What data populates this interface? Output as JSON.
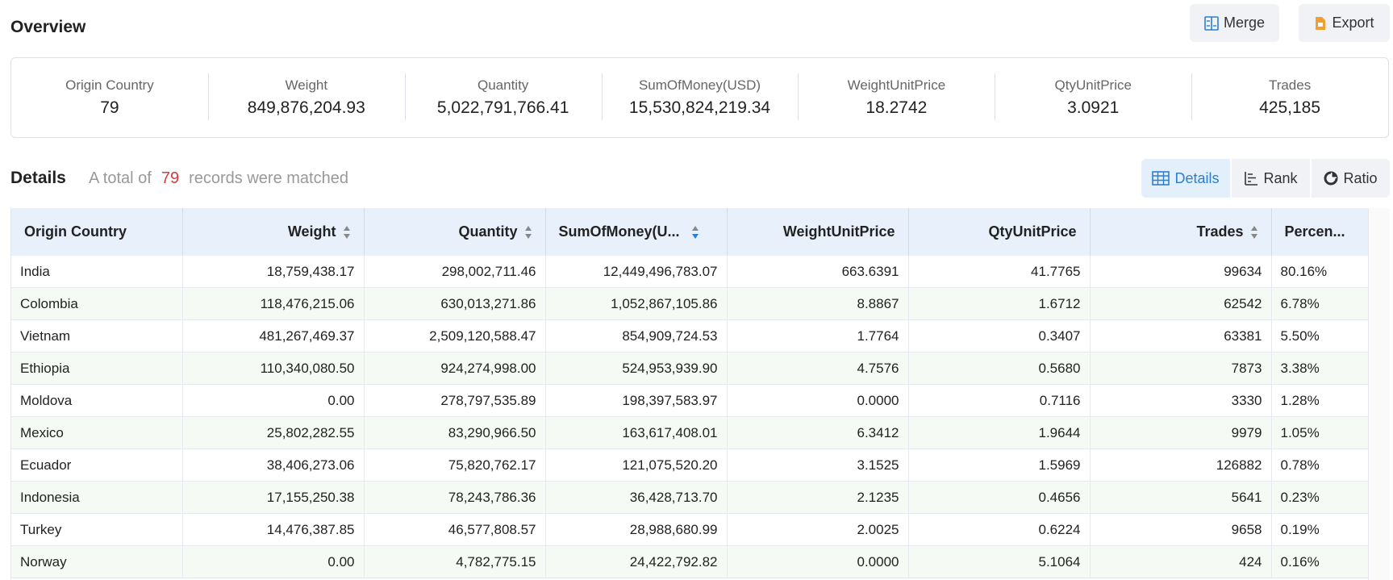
{
  "overview": {
    "title": "Overview",
    "merge_label": "Merge",
    "export_label": "Export"
  },
  "stats": [
    {
      "label": "Origin Country",
      "value": "79"
    },
    {
      "label": "Weight",
      "value": "849,876,204.93"
    },
    {
      "label": "Quantity",
      "value": "5,022,791,766.41"
    },
    {
      "label": "SumOfMoney(USD)",
      "value": "15,530,824,219.34"
    },
    {
      "label": "WeightUnitPrice",
      "value": "18.2742"
    },
    {
      "label": "QtyUnitPrice",
      "value": "3.0921"
    },
    {
      "label": "Trades",
      "value": "425,185"
    }
  ],
  "details": {
    "title": "Details",
    "summary_prefix": "A total of",
    "summary_count": "79",
    "summary_suffix": "records were matched",
    "tabs": [
      {
        "label": "Details",
        "icon": "table-icon",
        "active": true
      },
      {
        "label": "Rank",
        "icon": "rank-icon",
        "active": false
      },
      {
        "label": "Ratio",
        "icon": "pie-chart-icon",
        "active": false
      }
    ]
  },
  "table": {
    "columns": [
      {
        "label": "Origin Country",
        "sortable": false
      },
      {
        "label": "Weight",
        "sortable": true
      },
      {
        "label": "Quantity",
        "sortable": true
      },
      {
        "label": "SumOfMoney(U...",
        "sortable": true,
        "sorted": "desc"
      },
      {
        "label": "WeightUnitPrice",
        "sortable": false
      },
      {
        "label": "QtyUnitPrice",
        "sortable": false
      },
      {
        "label": "Trades",
        "sortable": true
      },
      {
        "label": "Percen...",
        "sortable": false
      }
    ],
    "rows": [
      [
        "India",
        "18,759,438.17",
        "298,002,711.46",
        "12,449,496,783.07",
        "663.6391",
        "41.7765",
        "99634",
        "80.16%"
      ],
      [
        "Colombia",
        "118,476,215.06",
        "630,013,271.86",
        "1,052,867,105.86",
        "8.8867",
        "1.6712",
        "62542",
        "6.78%"
      ],
      [
        "Vietnam",
        "481,267,469.37",
        "2,509,120,588.47",
        "854,909,724.53",
        "1.7764",
        "0.3407",
        "63381",
        "5.50%"
      ],
      [
        "Ethiopia",
        "110,340,080.50",
        "924,274,998.00",
        "524,953,939.90",
        "4.7576",
        "0.5680",
        "7873",
        "3.38%"
      ],
      [
        "Moldova",
        "0.00",
        "278,797,535.89",
        "198,397,583.97",
        "0.0000",
        "0.7116",
        "3330",
        "1.28%"
      ],
      [
        "Mexico",
        "25,802,282.55",
        "83,290,966.50",
        "163,617,408.01",
        "6.3412",
        "1.9644",
        "9979",
        "1.05%"
      ],
      [
        "Ecuador",
        "38,406,273.06",
        "75,820,762.17",
        "121,075,520.20",
        "3.1525",
        "1.5969",
        "126882",
        "0.78%"
      ],
      [
        "Indonesia",
        "17,155,250.38",
        "78,243,786.36",
        "36,428,713.70",
        "2.1235",
        "0.4656",
        "5641",
        "0.23%"
      ],
      [
        "Turkey",
        "14,476,387.85",
        "46,577,808.57",
        "28,988,680.99",
        "2.0025",
        "0.6224",
        "9658",
        "0.19%"
      ],
      [
        "Norway",
        "0.00",
        "4,782,775.15",
        "24,422,792.82",
        "0.0000",
        "5.1064",
        "424",
        "0.16%"
      ]
    ]
  },
  "colors": {
    "accent": "#2b7fd1",
    "count_red": "#d83b3b",
    "header_bg": "#e8f0fc",
    "stripe_bg": "#f5faf4",
    "export_icon": "#f0a030"
  }
}
